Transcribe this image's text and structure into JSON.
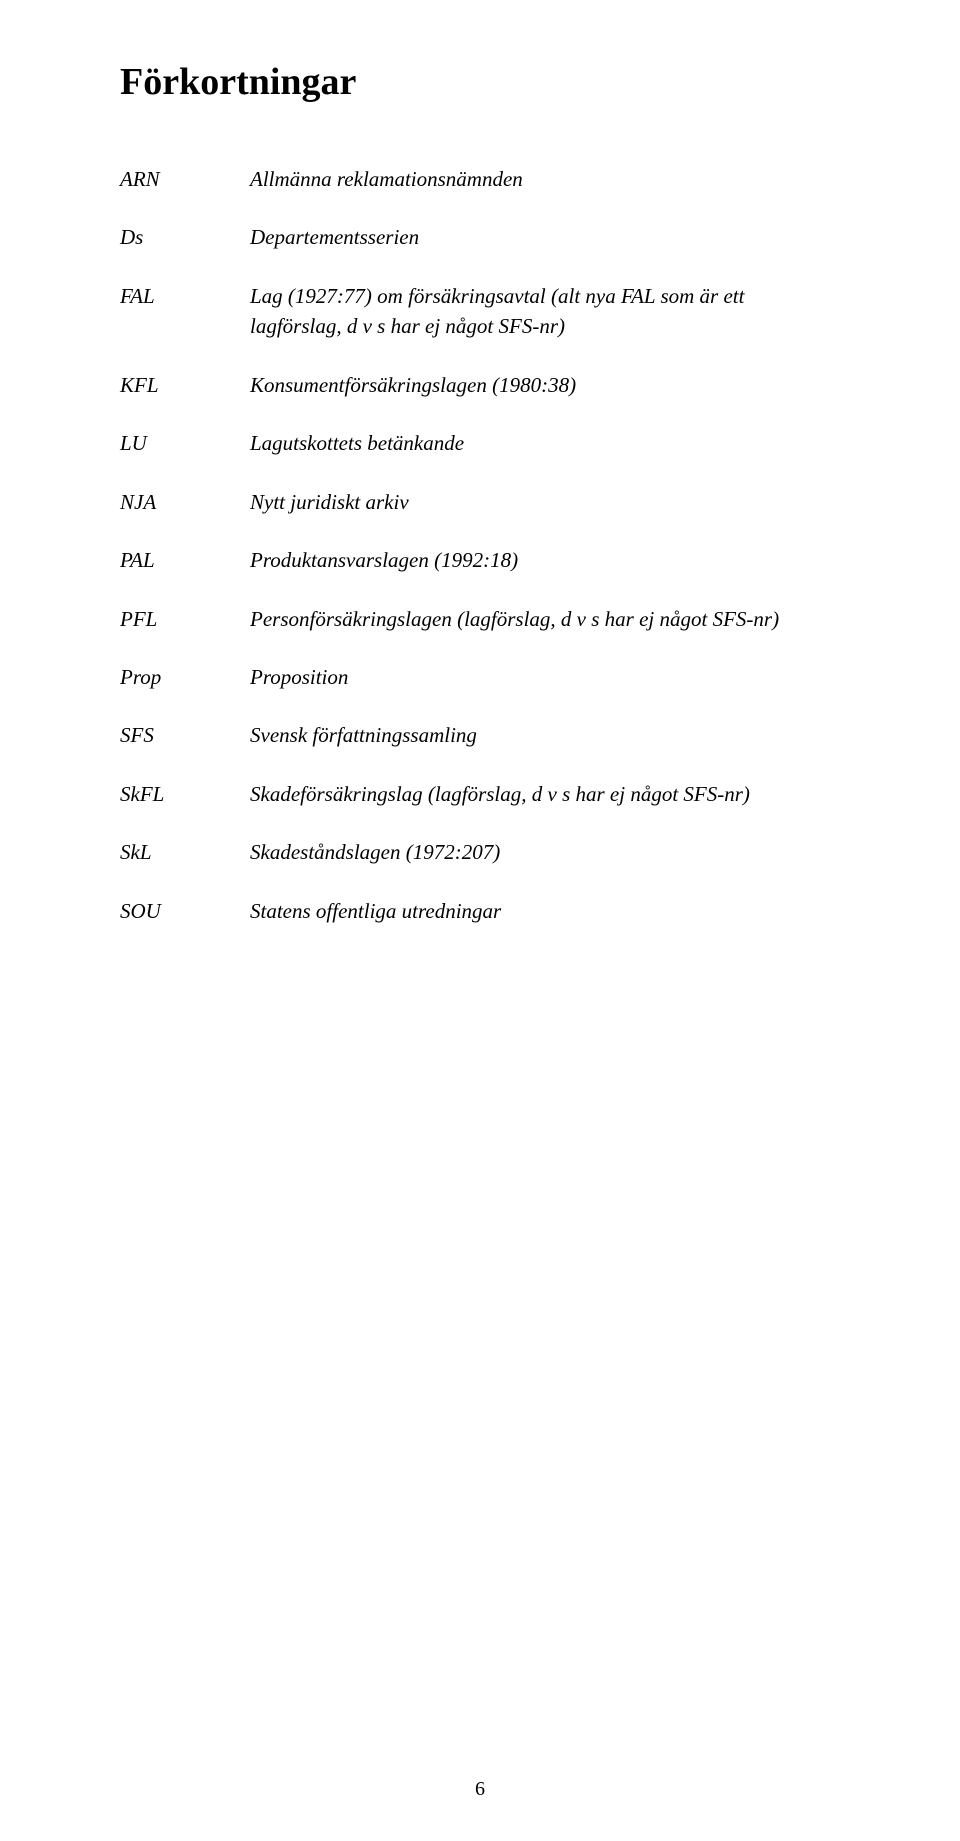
{
  "title": "Förkortningar",
  "entries": [
    {
      "abbr": "ARN",
      "def": "Allmänna reklamationsnämnden"
    },
    {
      "abbr": "Ds",
      "def": "Departementsserien"
    },
    {
      "abbr": "FAL",
      "def": "Lag (1927:77) om försäkringsavtal (alt nya FAL som är ett lagförslag, d v s har ej något SFS-nr)"
    },
    {
      "abbr": "KFL",
      "def": "Konsumentförsäkringslagen (1980:38)"
    },
    {
      "abbr": "LU",
      "def": "Lagutskottets betänkande"
    },
    {
      "abbr": "NJA",
      "def": "Nytt juridiskt arkiv"
    },
    {
      "abbr": "PAL",
      "def": "Produktansvarslagen (1992:18)"
    },
    {
      "abbr": "PFL",
      "def": "Personförsäkringslagen (lagförslag, d v s har ej något SFS-nr)"
    },
    {
      "abbr": "Prop",
      "def": "Proposition"
    },
    {
      "abbr": "SFS",
      "def": "Svensk författningssamling"
    },
    {
      "abbr": "SkFL",
      "def": "Skadeförsäkringslag (lagförslag, d v s har ej något SFS-nr)"
    },
    {
      "abbr": "SkL",
      "def": "Skadeståndslagen (1972:207)"
    },
    {
      "abbr": "SOU",
      "def": "Statens offentliga utredningar"
    }
  ],
  "page_number": "6"
}
